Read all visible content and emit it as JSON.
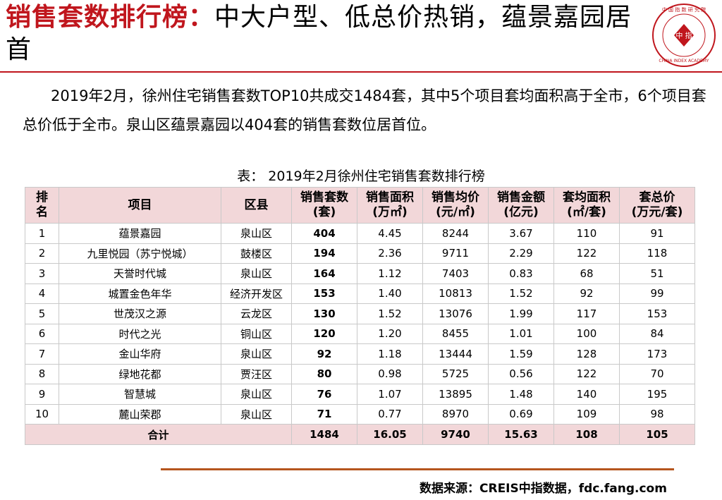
{
  "title": {
    "highlight": "销售套数排行榜：",
    "rest": "中大户型、低总价热销，蕴景嘉园居首"
  },
  "logo": {
    "center_text": "中 指",
    "ring_top": "中 国 指 数 研 究 院",
    "ring_bottom": "CHINA INDEX ACADEMY"
  },
  "paragraph": "2019年2月，徐州住宅销售套数TOP10共成交1484套，其中5个项目套均面积高于全市，6个项目套总价低于全市。泉山区蕴景嘉园以404套的销售套数位居首位。",
  "table": {
    "caption": "表： 2019年2月徐州住宅销售套数排行榜",
    "headers": [
      {
        "line1": "排",
        "line2": "名"
      },
      {
        "line1": "项目",
        "line2": ""
      },
      {
        "line1": "区县",
        "line2": ""
      },
      {
        "line1": "销售套数",
        "line2": "(套)"
      },
      {
        "line1": "销售面积",
        "line2": "(万㎡)"
      },
      {
        "line1": "销售均价",
        "line2": "(元/㎡)"
      },
      {
        "line1": "销售金额",
        "line2": "(亿元)"
      },
      {
        "line1": "套均面积",
        "line2": "(㎡/套)"
      },
      {
        "line1": "套总价",
        "line2": "(万元/套)"
      }
    ],
    "rows": [
      [
        "1",
        "蕴景嘉园",
        "泉山区",
        "404",
        "4.45",
        "8244",
        "3.67",
        "110",
        "91"
      ],
      [
        "2",
        "九里悦园（苏宁悦城）",
        "鼓楼区",
        "194",
        "2.36",
        "9711",
        "2.29",
        "122",
        "118"
      ],
      [
        "3",
        "天誉时代城",
        "泉山区",
        "164",
        "1.12",
        "7403",
        "0.83",
        "68",
        "51"
      ],
      [
        "4",
        "城置金色年华",
        "经济开发区",
        "153",
        "1.40",
        "10813",
        "1.52",
        "92",
        "99"
      ],
      [
        "5",
        "世茂汉之源",
        "云龙区",
        "130",
        "1.52",
        "13076",
        "1.99",
        "117",
        "153"
      ],
      [
        "6",
        "时代之光",
        "铜山区",
        "120",
        "1.20",
        "8455",
        "1.01",
        "100",
        "84"
      ],
      [
        "7",
        "金山华府",
        "泉山区",
        "92",
        "1.18",
        "13444",
        "1.59",
        "128",
        "173"
      ],
      [
        "8",
        "绿地花都",
        "贾汪区",
        "80",
        "0.98",
        "5725",
        "0.56",
        "122",
        "70"
      ],
      [
        "9",
        "智慧城",
        "泉山区",
        "76",
        "1.07",
        "13895",
        "1.48",
        "140",
        "195"
      ],
      [
        "10",
        "麓山荣郡",
        "泉山区",
        "71",
        "0.77",
        "8970",
        "0.69",
        "109",
        "98"
      ]
    ],
    "total": [
      "合计",
      "1484",
      "16.05",
      "9740",
      "15.63",
      "108",
      "105"
    ]
  },
  "source": "数据来源：CREIS中指数据，fdc.fang.com",
  "colors": {
    "accent": "#c0161d",
    "header_bg": "#f2d7d9",
    "bottom_rule": "#b5551d"
  }
}
